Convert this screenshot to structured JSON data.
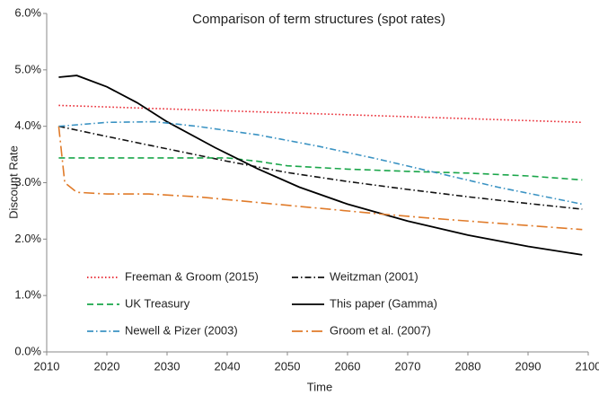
{
  "chart_data": {
    "type": "line",
    "title": "Comparison of term structures (spot rates)",
    "x_label": "Time",
    "y_label": "Discount Rate",
    "xlim": [
      2010,
      2100
    ],
    "xticks": [
      2010,
      2020,
      2030,
      2040,
      2050,
      2060,
      2070,
      2080,
      2090,
      2100
    ],
    "ylim": [
      0,
      6
    ],
    "yticks": [
      {
        "value": 0,
        "label": "0.0%"
      },
      {
        "value": 1,
        "label": "1.0%"
      },
      {
        "value": 2,
        "label": "2.0%"
      },
      {
        "value": 3,
        "label": "3.0%"
      },
      {
        "value": 4,
        "label": "4.0%"
      },
      {
        "value": 5,
        "label": "5.0%"
      },
      {
        "value": 6,
        "label": "6.0%"
      }
    ],
    "grid": false,
    "series": [
      {
        "name": "Freeman & Groom (2015)",
        "color": "#e8202a",
        "dash": "dotted",
        "x": [
          2012,
          2099
        ],
        "values": [
          4.37,
          4.07
        ]
      },
      {
        "name": "Weitzman (2001)",
        "color": "#111111",
        "dash": "dashdot",
        "x": [
          2012,
          2020,
          2030,
          2040,
          2050,
          2060,
          2070,
          2080,
          2090,
          2099
        ],
        "values": [
          4.0,
          3.82,
          3.6,
          3.38,
          3.18,
          3.02,
          2.88,
          2.75,
          2.63,
          2.53
        ]
      },
      {
        "name": "UK Treasury",
        "color": "#1aa64a",
        "dash": "dashed",
        "x": [
          2012,
          2040,
          2045,
          2050,
          2060,
          2070,
          2080,
          2090,
          2099
        ],
        "values": [
          3.44,
          3.44,
          3.38,
          3.3,
          3.24,
          3.2,
          3.17,
          3.12,
          3.05
        ]
      },
      {
        "name": "This paper (Gamma)",
        "color": "#000000",
        "dash": "solid",
        "x": [
          2012,
          2015,
          2020,
          2025,
          2030,
          2038,
          2045,
          2052,
          2060,
          2070,
          2080,
          2090,
          2099
        ],
        "values": [
          4.87,
          4.9,
          4.7,
          4.42,
          4.08,
          3.62,
          3.25,
          2.92,
          2.62,
          2.32,
          2.07,
          1.87,
          1.72
        ]
      },
      {
        "name": "Newell & Pizer (2003)",
        "color": "#3b93c3",
        "dash": "dashdot",
        "x": [
          2012,
          2020,
          2028,
          2035,
          2045,
          2055,
          2065,
          2075,
          2085,
          2099
        ],
        "values": [
          4.0,
          4.07,
          4.08,
          4.0,
          3.85,
          3.65,
          3.42,
          3.17,
          2.92,
          2.62
        ]
      },
      {
        "name": "Groom et al. (2007)",
        "color": "#e07b2a",
        "dash": "longdashdot",
        "x": [
          2012,
          2013,
          2015,
          2020,
          2027,
          2035,
          2045,
          2055,
          2065,
          2075,
          2085,
          2099
        ],
        "values": [
          4.0,
          3.0,
          2.83,
          2.8,
          2.8,
          2.75,
          2.65,
          2.55,
          2.45,
          2.36,
          2.28,
          2.17
        ]
      }
    ]
  }
}
